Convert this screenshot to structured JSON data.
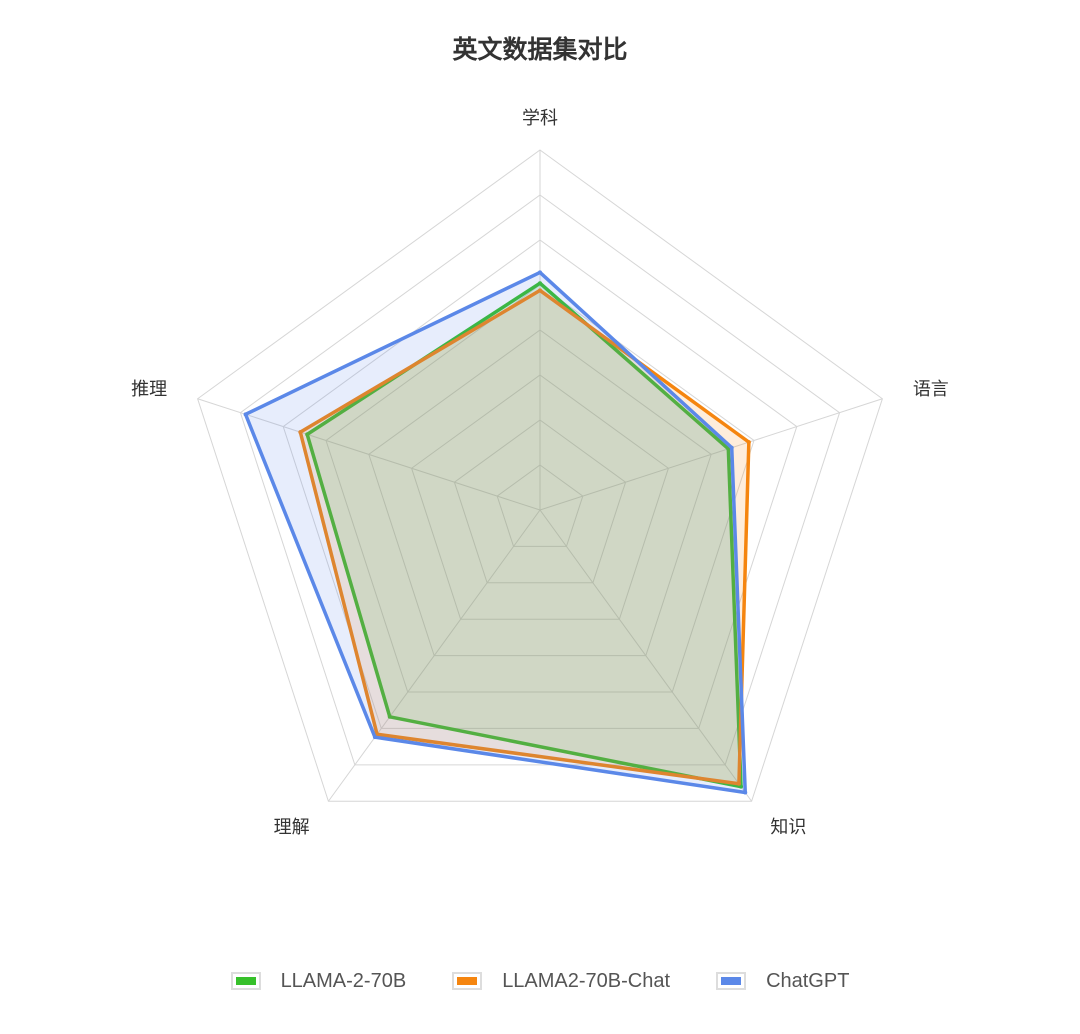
{
  "chart_data": {
    "type": "radar",
    "title": "英文数据集对比",
    "axes": [
      "学科",
      "语言",
      "知识",
      "理解",
      "推理"
    ],
    "max": 100,
    "rings": 8,
    "series": [
      {
        "name": "LLAMA-2-70B",
        "color": "#36c02a",
        "values": [
          63,
          55,
          95,
          71,
          68
        ]
      },
      {
        "name": "LLAMA2-70B-Chat",
        "color": "#f5850f",
        "values": [
          61,
          61,
          94,
          77,
          70
        ]
      },
      {
        "name": "ChatGPT",
        "color": "#5b88e8",
        "values": [
          66,
          56,
          97,
          78,
          86
        ]
      }
    ]
  }
}
